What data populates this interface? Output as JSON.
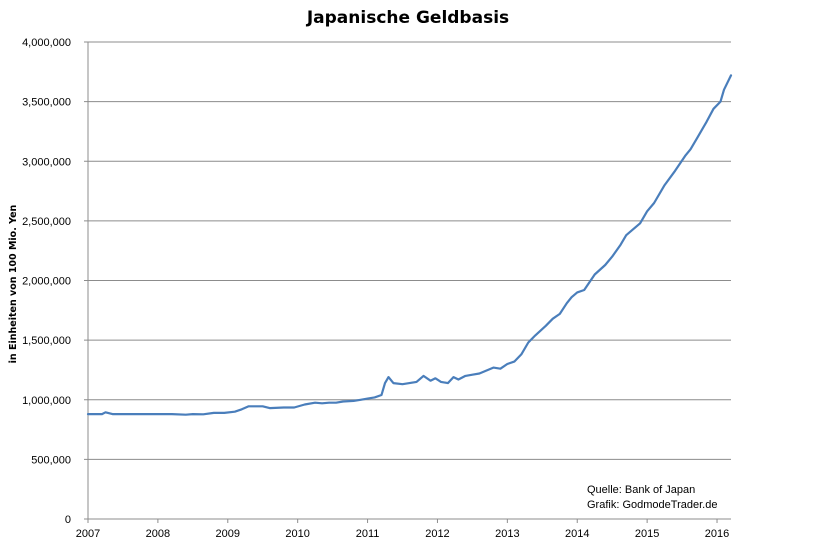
{
  "chart_data": {
    "type": "line",
    "title": "Japanische Geldbasis",
    "xlabel": "",
    "ylabel": "in Einheiten von 100 Mio. Yen",
    "ylim": [
      0,
      4000000
    ],
    "xlim": [
      2007.0,
      2016.2
    ],
    "grid": true,
    "y_ticks": [
      0,
      500000,
      1000000,
      1500000,
      2000000,
      2500000,
      3000000,
      3500000,
      4000000
    ],
    "y_tick_labels": [
      "0",
      "500,000",
      "1,000,000",
      "1,500,000",
      "2,000,000",
      "2,500,000",
      "3,000,000",
      "3,500,000",
      "4,000,000"
    ],
    "x_ticks": [
      2007,
      2008,
      2009,
      2010,
      2011,
      2012,
      2013,
      2014,
      2015,
      2016
    ],
    "x_tick_labels": [
      "2007",
      "2008",
      "2009",
      "2010",
      "2011",
      "2012",
      "2013",
      "2014",
      "2015",
      "2016"
    ],
    "annotations": [
      "Quelle: Bank of Japan",
      "Grafik: GodmodeTrader.de"
    ],
    "series": [
      {
        "color": "#4a7ebb",
        "x": [
          2007.0,
          2007.2,
          2007.25,
          2007.35,
          2007.6,
          2008.0,
          2008.2,
          2008.4,
          2008.5,
          2008.65,
          2008.8,
          2008.95,
          2009.1,
          2009.2,
          2009.3,
          2009.5,
          2009.6,
          2009.8,
          2009.95,
          2010.1,
          2010.25,
          2010.35,
          2010.45,
          2010.55,
          2010.65,
          2010.8,
          2010.9,
          2011.0,
          2011.1,
          2011.2,
          2011.25,
          2011.3,
          2011.37,
          2011.5,
          2011.6,
          2011.7,
          2011.8,
          2011.9,
          2011.97,
          2012.05,
          2012.15,
          2012.23,
          2012.3,
          2012.4,
          2012.5,
          2012.6,
          2012.8,
          2012.9,
          2013.0,
          2013.1,
          2013.2,
          2013.3,
          2013.4,
          2013.55,
          2013.65,
          2013.75,
          2013.85,
          2013.92,
          2014.0,
          2014.1,
          2014.25,
          2014.4,
          2014.5,
          2014.62,
          2014.7,
          2014.8,
          2014.9,
          2015.0,
          2015.1,
          2015.25,
          2015.4,
          2015.55,
          2015.62,
          2015.72,
          2015.85,
          2015.95,
          2016.05,
          2016.1,
          2016.2
        ],
        "values": [
          880000,
          880000,
          895000,
          880000,
          880000,
          880000,
          880000,
          875000,
          880000,
          878000,
          890000,
          890000,
          900000,
          920000,
          945000,
          945000,
          930000,
          935000,
          935000,
          960000,
          975000,
          970000,
          975000,
          975000,
          985000,
          990000,
          1000000,
          1010000,
          1020000,
          1040000,
          1140000,
          1190000,
          1140000,
          1130000,
          1140000,
          1150000,
          1200000,
          1160000,
          1180000,
          1150000,
          1140000,
          1190000,
          1170000,
          1200000,
          1210000,
          1220000,
          1270000,
          1260000,
          1300000,
          1320000,
          1380000,
          1480000,
          1540000,
          1620000,
          1680000,
          1720000,
          1810000,
          1860000,
          1900000,
          1920000,
          2050000,
          2130000,
          2200000,
          2300000,
          2380000,
          2430000,
          2480000,
          2580000,
          2650000,
          2800000,
          2920000,
          3050000,
          3100000,
          3200000,
          3330000,
          3440000,
          3500000,
          3600000,
          3720000
        ]
      }
    ]
  }
}
